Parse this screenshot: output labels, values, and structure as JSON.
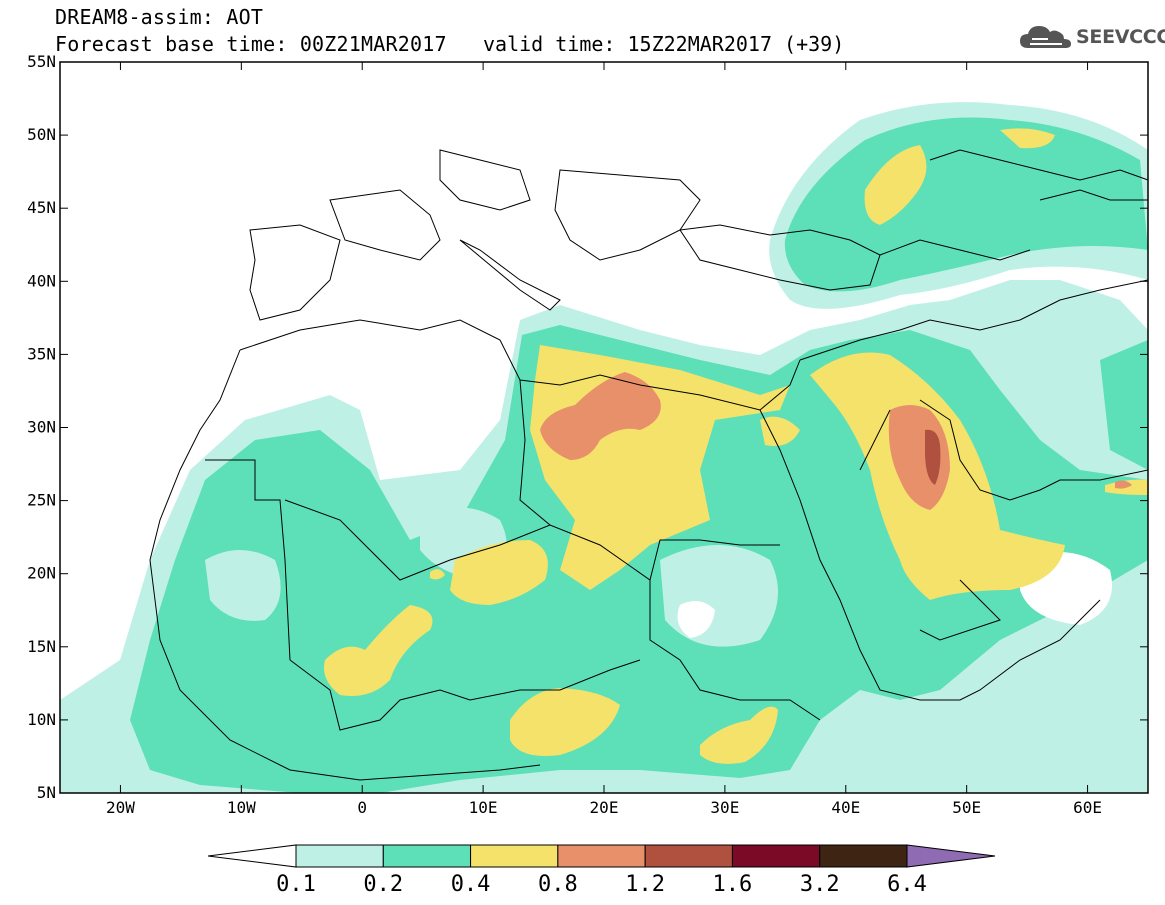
{
  "header": {
    "line1": "DREAM8-assim: AOT",
    "line2": "Forecast base time: 00Z21MAR2017",
    "valid": "valid time: 15Z22MAR2017 (+39)",
    "logo_text": "SEEVCCC",
    "logo_icon": "cloud-icon"
  },
  "map": {
    "lon_range": [
      -25,
      65
    ],
    "lat_range": [
      5,
      55
    ],
    "lon_ticks": [
      {
        "value": -20,
        "label": "20W"
      },
      {
        "value": -10,
        "label": "10W"
      },
      {
        "value": 0,
        "label": "0"
      },
      {
        "value": 10,
        "label": "10E"
      },
      {
        "value": 20,
        "label": "20E"
      },
      {
        "value": 30,
        "label": "30E"
      },
      {
        "value": 40,
        "label": "40E"
      },
      {
        "value": 50,
        "label": "50E"
      },
      {
        "value": 60,
        "label": "60E"
      }
    ],
    "lat_ticks": [
      {
        "value": 55,
        "label": "55N"
      },
      {
        "value": 50,
        "label": "50N"
      },
      {
        "value": 45,
        "label": "45N"
      },
      {
        "value": 40,
        "label": "40N"
      },
      {
        "value": 35,
        "label": "35N"
      },
      {
        "value": 30,
        "label": "30N"
      },
      {
        "value": 25,
        "label": "25N"
      },
      {
        "value": 20,
        "label": "20N"
      },
      {
        "value": 15,
        "label": "15N"
      },
      {
        "value": 10,
        "label": "10N"
      },
      {
        "value": 5,
        "label": "5N"
      }
    ]
  },
  "colorbar": {
    "labels": [
      "0.1",
      "0.2",
      "0.4",
      "0.8",
      "1.2",
      "1.6",
      "3.2",
      "6.4"
    ],
    "colors": [
      "#ffffff",
      "#bff0e6",
      "#5ddfb8",
      "#f5e26b",
      "#e8906a",
      "#b0503f",
      "#7a0a26",
      "#3d2413",
      "#8e6bb3"
    ]
  },
  "palette": {
    "c01": "#bff0e6",
    "c02": "#5ddfb8",
    "c04": "#f5e26b",
    "c08": "#e8906a",
    "c12": "#b0503f"
  }
}
